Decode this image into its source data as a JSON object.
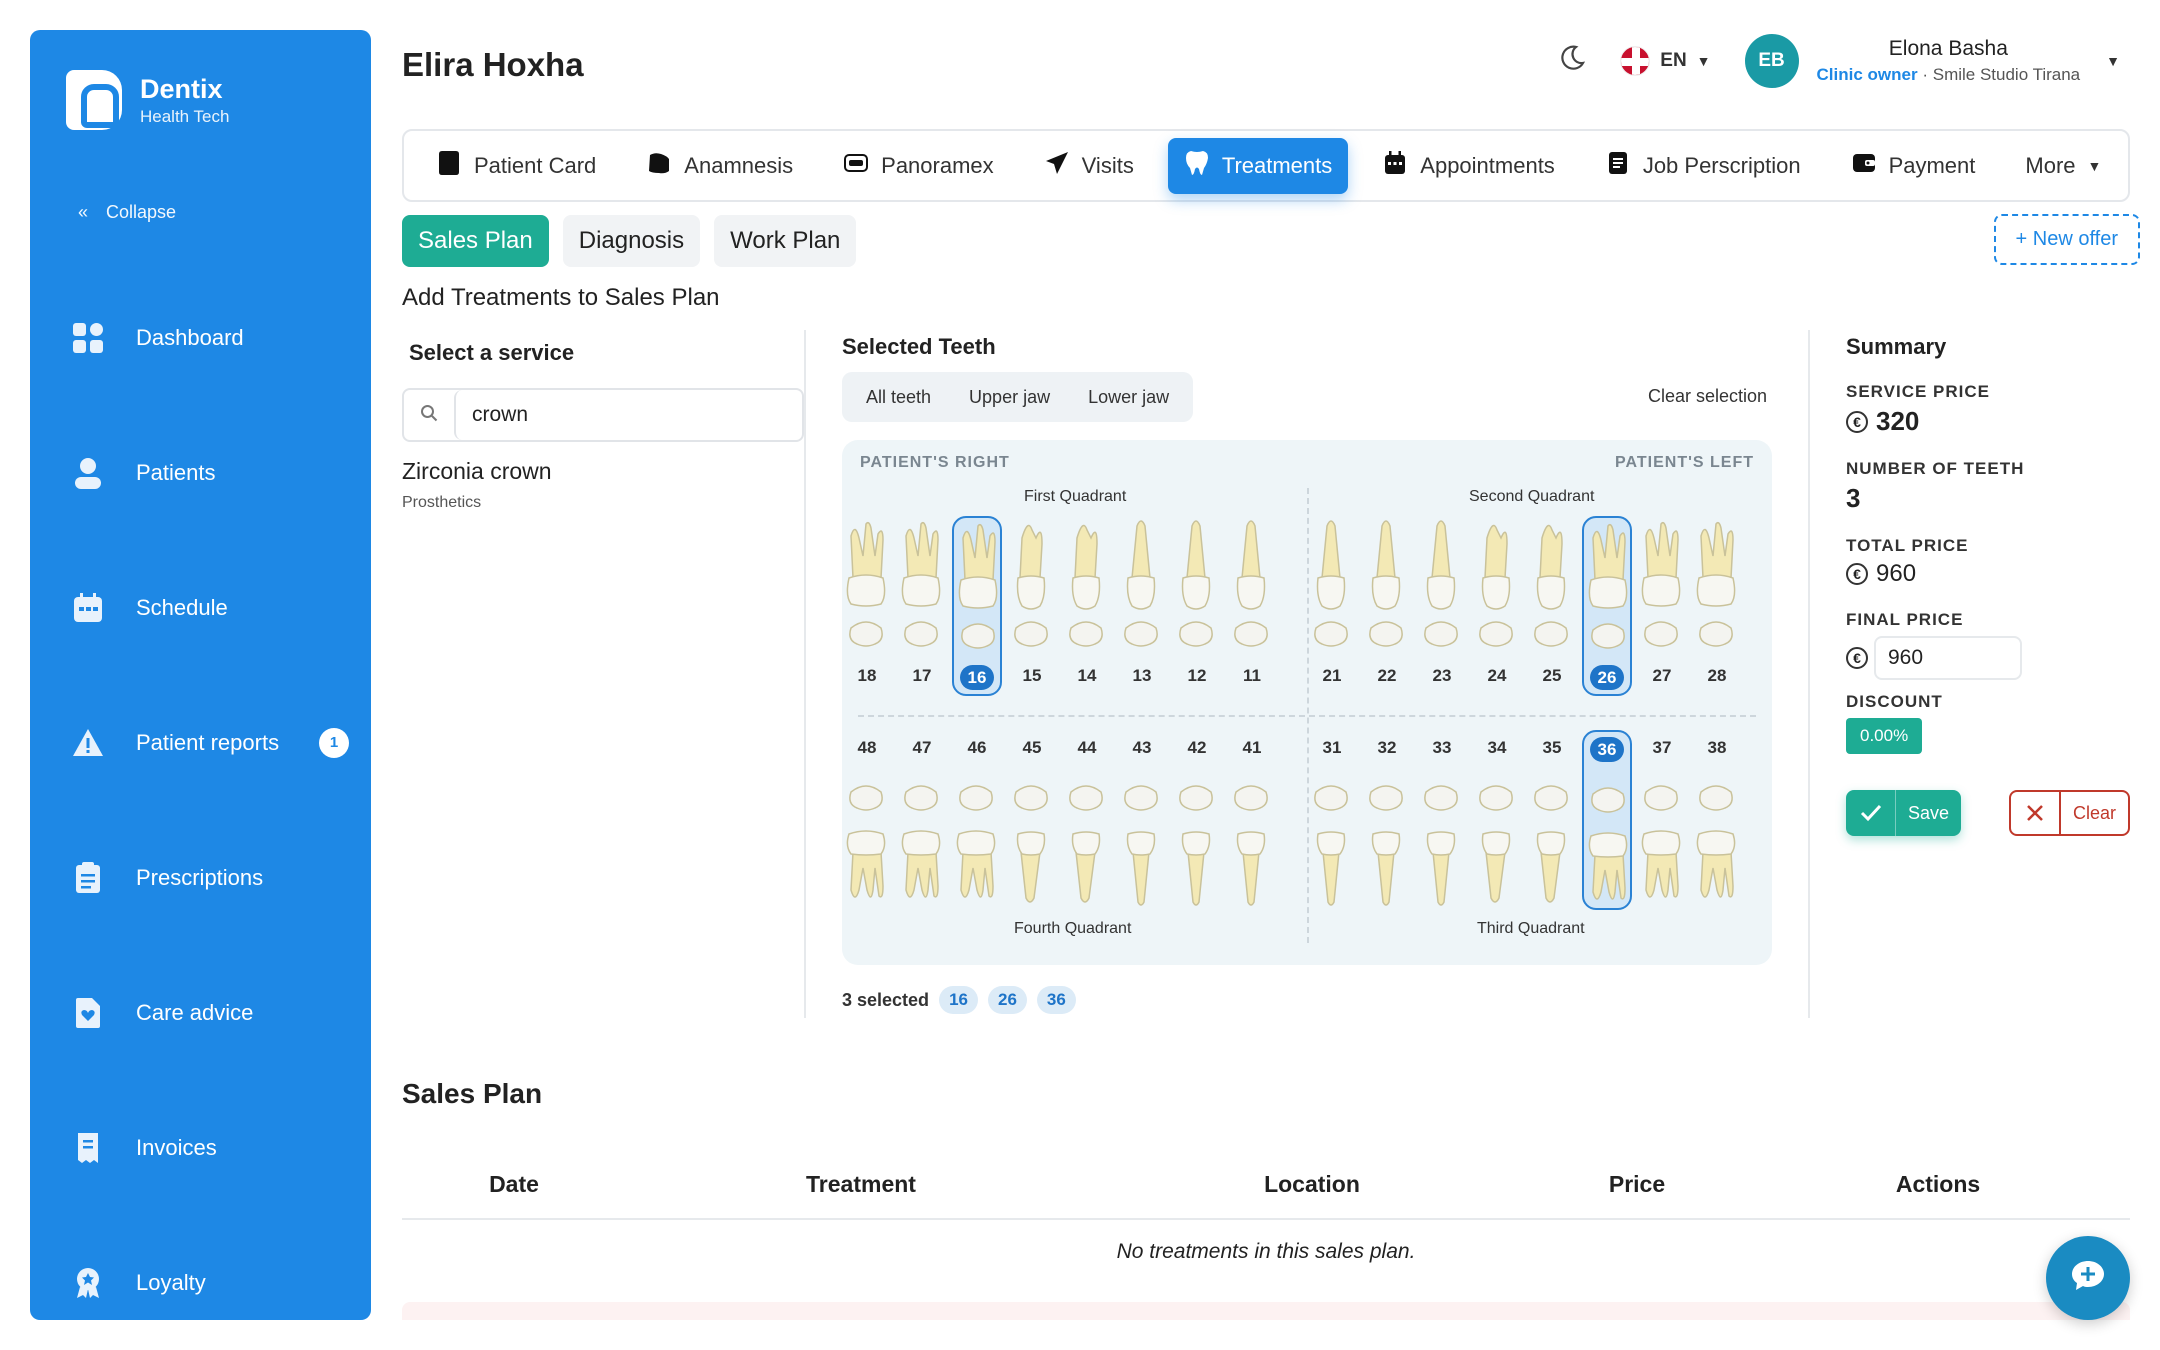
{
  "brand": {
    "name": "Dentix",
    "subtitle": "Health Tech"
  },
  "sidebar": {
    "collapse_label": "Collapse",
    "items": [
      {
        "label": "Dashboard",
        "icon": "dashboard-icon"
      },
      {
        "label": "Patients",
        "icon": "user-icon"
      },
      {
        "label": "Schedule",
        "icon": "calendar-icon"
      },
      {
        "label": "Patient reports",
        "icon": "warning-icon",
        "badge": "1"
      },
      {
        "label": "Prescriptions",
        "icon": "clipboard-icon"
      },
      {
        "label": "Care advice",
        "icon": "heart-document-icon"
      },
      {
        "label": "Invoices",
        "icon": "receipt-icon"
      },
      {
        "label": "Loyalty",
        "icon": "award-icon"
      }
    ]
  },
  "header": {
    "title": "Elira Hoxha",
    "language": "EN",
    "user": {
      "initials": "EB",
      "name": "Elona Basha",
      "role": "Clinic owner",
      "clinic": "· Smile Studio Tirana"
    }
  },
  "tabs": [
    {
      "label": "Patient Card",
      "icon": "card-icon"
    },
    {
      "label": "Anamnesis",
      "icon": "notes-icon"
    },
    {
      "label": "Panoramex",
      "icon": "xray-icon"
    },
    {
      "label": "Visits",
      "icon": "send-icon"
    },
    {
      "label": "Treatments",
      "icon": "tooth-icon",
      "active": true
    },
    {
      "label": "Appointments",
      "icon": "calendar-icon"
    },
    {
      "label": "Job Perscription",
      "icon": "document-icon"
    },
    {
      "label": "Payment",
      "icon": "wallet-icon"
    },
    {
      "label": "More",
      "icon": "chevron-down-icon"
    }
  ],
  "subtabs": [
    "Sales Plan",
    "Diagnosis",
    "Work Plan"
  ],
  "new_offer_label": "+ New offer",
  "section_title": "Add Treatments to Sales Plan",
  "service": {
    "label": "Select a service",
    "search_value": "crown",
    "result": {
      "name": "Zirconia crown",
      "category": "Prosthetics"
    }
  },
  "teeth": {
    "label": "Selected Teeth",
    "filters": [
      "All teeth",
      "Upper jaw",
      "Lower jaw"
    ],
    "clear_selection": "Clear selection",
    "patient_right": "PATIENT'S RIGHT",
    "patient_left": "PATIENT'S LEFT",
    "quadrants": [
      "First Quadrant",
      "Second Quadrant",
      "Third Quadrant",
      "Fourth Quadrant"
    ],
    "upper": [
      "18",
      "17",
      "16",
      "15",
      "14",
      "13",
      "12",
      "11",
      "21",
      "22",
      "23",
      "24",
      "25",
      "26",
      "27",
      "28"
    ],
    "lower": [
      "48",
      "47",
      "46",
      "45",
      "44",
      "43",
      "42",
      "41",
      "31",
      "32",
      "33",
      "34",
      "35",
      "36",
      "37",
      "38"
    ],
    "selected": [
      "16",
      "26",
      "36"
    ],
    "selected_count_label": "3 selected"
  },
  "summary": {
    "title": "Summary",
    "service_price_label": "SERVICE PRICE",
    "service_price": "320",
    "teeth_count_label": "NUMBER OF TEETH",
    "teeth_count": "3",
    "total_price_label": "TOTAL PRICE",
    "total_price": "960",
    "final_price_label": "FINAL PRICE",
    "final_price": "960",
    "discount_label": "DISCOUNT",
    "discount": "0.00%",
    "currency_symbol": "€",
    "save_label": "Save",
    "clear_label": "Clear"
  },
  "sales_plan": {
    "title": "Sales Plan",
    "columns": [
      "Date",
      "Treatment",
      "Location",
      "Price",
      "Actions"
    ],
    "empty_message": "No treatments in this sales plan."
  },
  "colors": {
    "primary": "#1e88e5",
    "accent": "#1eac94",
    "danger": "#c0392b"
  }
}
